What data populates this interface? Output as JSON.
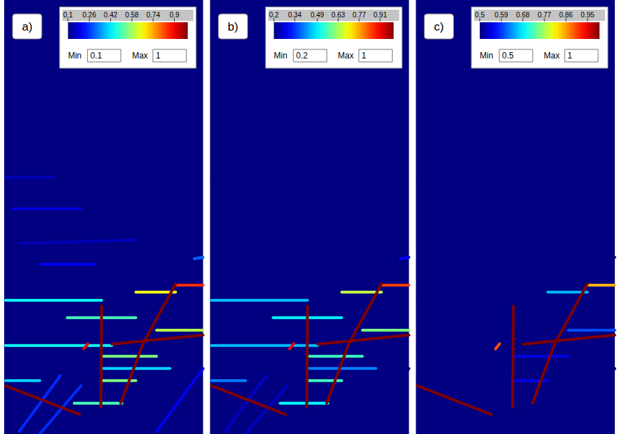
{
  "chart_data": [
    {
      "type": "damage_map",
      "panel_label": "a)",
      "xlim": [
        0,
        100
      ],
      "ylim": [
        0,
        100
      ],
      "tick_labels": false,
      "color_bar": {
        "range": [
          0.1,
          1
        ],
        "ticks": [
          0.1,
          0.26,
          0.42,
          0.58,
          0.74,
          0.9
        ],
        "min_label": "Min",
        "max_label": "Max"
      }
    },
    {
      "type": "damage_map",
      "panel_label": "b)",
      "xlim": [
        0,
        100
      ],
      "ylim": [
        0,
        100
      ],
      "tick_labels": false,
      "color_bar": {
        "range": [
          0.2,
          1
        ],
        "ticks": [
          0.2,
          0.34,
          0.49,
          0.63,
          0.77,
          0.91
        ],
        "min_label": "Min",
        "max_label": "Max"
      }
    },
    {
      "type": "damage_map",
      "panel_label": "c)",
      "xlim": [
        0,
        100
      ],
      "ylim": [
        0,
        100
      ],
      "tick_labels": false,
      "color_bar": {
        "range": [
          0.5,
          1
        ],
        "ticks": [
          0.5,
          0.59,
          0.68,
          0.77,
          0.86,
          0.95
        ],
        "min_label": "Min",
        "max_label": "Max"
      }
    }
  ],
  "damage_field": {
    "cracks": [
      {
        "damage": 0.15,
        "x": [
          0.7,
          24.8
        ],
        "y": [
          59.1,
          59.1
        ]
      },
      {
        "damage": 0.18,
        "x": [
          4.1,
          38.6
        ],
        "y": [
          51.9,
          51.9
        ]
      },
      {
        "damage": 0.15,
        "x": [
          7.6,
          66.2
        ],
        "y": [
          43.9,
          44.7
        ]
      },
      {
        "damage": 0.2,
        "x": [
          17.9,
          45.5
        ],
        "y": [
          39.1,
          39.1
        ]
      },
      {
        "damage": 0.25,
        "x": [
          7.6,
          28.3
        ],
        "y": [
          0.6,
          13.5
        ]
      },
      {
        "damage": 0.25,
        "x": [
          17.9,
          38.6
        ],
        "y": [
          0,
          11.1
        ]
      },
      {
        "damage": 0.2,
        "x": [
          76.6,
          100
        ],
        "y": [
          0.6,
          15.1
        ]
      },
      {
        "damage": 0.3,
        "x": [
          95.5,
          100
        ],
        "y": [
          40.4,
          40.7
        ]
      },
      {
        "damage": 0.45,
        "x": [
          0.7,
          49
        ],
        "y": [
          30.8,
          30.8
        ]
      },
      {
        "damage": 0.5,
        "x": [
          31.7,
          66.2
        ],
        "y": [
          26.8,
          26.8
        ]
      },
      {
        "damage": 0.45,
        "x": [
          0.7,
          54.1
        ],
        "y": [
          20.4,
          20.4
        ]
      },
      {
        "damage": 0.55,
        "x": [
          49,
          76.6
        ],
        "y": [
          17.9,
          17.9
        ]
      },
      {
        "damage": 0.4,
        "x": [
          49,
          83.4
        ],
        "y": [
          15.1,
          15.1
        ]
      },
      {
        "damage": 0.55,
        "x": [
          49,
          66.2
        ],
        "y": [
          12.3,
          12.3
        ]
      },
      {
        "damage": 0.4,
        "x": [
          0.7,
          17.9
        ],
        "y": [
          12.3,
          12.3
        ]
      },
      {
        "damage": 0.5,
        "x": [
          35.2,
          59.3
        ],
        "y": [
          7.1,
          7.1
        ]
      },
      {
        "damage": 0.65,
        "x": [
          66.2,
          86.2
        ],
        "y": [
          32.7,
          32.7
        ]
      },
      {
        "damage": 0.6,
        "x": [
          76.6,
          100
        ],
        "y": [
          23.9,
          23.9
        ]
      },
      {
        "damage": 0.85,
        "x": [
          86.2,
          100
        ],
        "y": [
          34.3,
          34.3
        ]
      },
      {
        "damage": 0.9,
        "x": [
          40,
          42.1
        ],
        "y": [
          19.6,
          20.8
        ]
      },
      {
        "damage": 1,
        "x": [
          0.7,
          37.9
        ],
        "y": [
          11.1,
          4.5
        ]
      },
      {
        "damage": 1,
        "x": [
          49,
          48.6
        ],
        "y": [
          29.5,
          6.2
        ]
      },
      {
        "damage": 1,
        "x": [
          58.6,
          69.7,
          86.2
        ],
        "y": [
          7.1,
          20.7,
          34.6
        ]
      },
      {
        "damage": 1,
        "x": [
          54.1,
          100
        ],
        "y": [
          20.7,
          22.8
        ]
      }
    ]
  }
}
